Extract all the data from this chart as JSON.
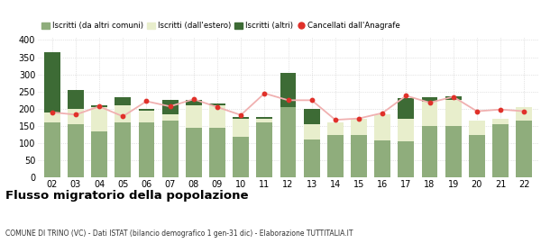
{
  "years": [
    "02",
    "03",
    "04",
    "05",
    "06",
    "07",
    "08",
    "09",
    "10",
    "11",
    "12",
    "13",
    "14",
    "15",
    "16",
    "17",
    "18",
    "19",
    "20",
    "21",
    "22"
  ],
  "iscritti_comuni": [
    160,
    155,
    135,
    160,
    160,
    165,
    145,
    145,
    120,
    160,
    205,
    110,
    125,
    125,
    107,
    105,
    150,
    150,
    125,
    155,
    165
  ],
  "iscritti_estero": [
    30,
    45,
    70,
    50,
    35,
    20,
    65,
    65,
    50,
    10,
    0,
    45,
    35,
    45,
    78,
    65,
    70,
    75,
    40,
    15,
    40
  ],
  "iscritti_altri": [
    175,
    55,
    5,
    25,
    5,
    40,
    15,
    5,
    5,
    5,
    100,
    45,
    0,
    0,
    0,
    60,
    15,
    12,
    0,
    0,
    0
  ],
  "cancellati": [
    190,
    183,
    207,
    178,
    222,
    207,
    228,
    205,
    182,
    245,
    225,
    225,
    168,
    172,
    188,
    238,
    218,
    235,
    193,
    198,
    193
  ],
  "color_comuni": "#8fad7c",
  "color_estero": "#e8eecc",
  "color_altri": "#3d6b35",
  "color_cancellati": "#e0312a",
  "color_line": "#f0b0b0",
  "title": "Flusso migratorio della popolazione",
  "subtitle": "COMUNE DI TRINO (VC) - Dati ISTAT (bilancio demografico 1 gen-31 dic) - Elaborazione TUTTITALIA.IT",
  "legend_label_comuni": "Iscritti (da altri comuni)",
  "legend_label_estero": "Iscritti (dall'estero)",
  "legend_label_altri": "Iscritti (altri)",
  "legend_label_cancellati": "Cancellati dall'Anagrafe",
  "ylim": [
    0,
    410
  ],
  "yticks": [
    0,
    50,
    100,
    150,
    200,
    250,
    300,
    350,
    400
  ],
  "background_color": "#ffffff",
  "grid_color": "#cccccc"
}
